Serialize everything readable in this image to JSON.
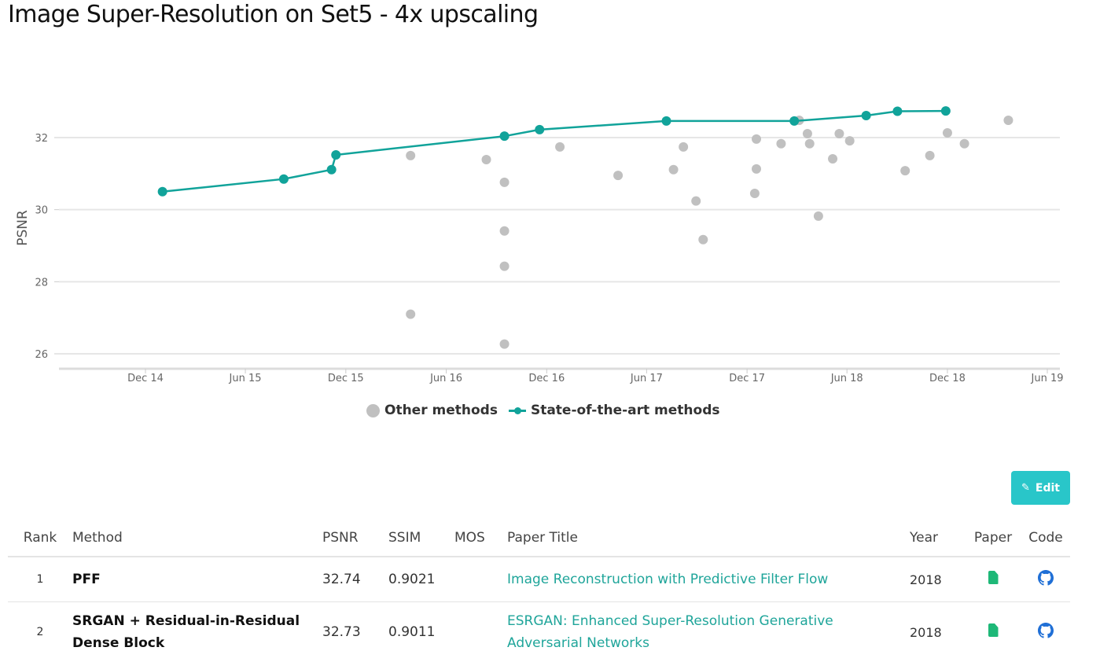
{
  "page": {
    "title": "Image Super-Resolution on Set5 - 4x upscaling",
    "edit_label": "Edit",
    "icons": {
      "edit": "pencil-icon",
      "paper": "document-icon",
      "code": "github-icon"
    },
    "colors": {
      "sota": "#11a39a",
      "other": "#c0c0c0",
      "edit_button": "#29c6c9",
      "link": "#1fa59a",
      "paper_icon": "#1eb878",
      "code_icon": "#1f6fd6"
    }
  },
  "chart_data": {
    "type": "scatter",
    "title": "",
    "xlabel": "",
    "ylabel": "PSNR",
    "ylim": [
      25.6,
      33.4
    ],
    "xlim": [
      "2014-06-25",
      "2019-06-25"
    ],
    "y_ticks": [
      26,
      28,
      30,
      32
    ],
    "x_ticks": [
      {
        "label": "Dec 14",
        "date": "2014-12-01"
      },
      {
        "label": "Jun 15",
        "date": "2015-06-01"
      },
      {
        "label": "Dec 15",
        "date": "2015-12-01"
      },
      {
        "label": "Jun 16",
        "date": "2016-06-01"
      },
      {
        "label": "Dec 16",
        "date": "2016-12-01"
      },
      {
        "label": "Jun 17",
        "date": "2017-06-01"
      },
      {
        "label": "Dec 17",
        "date": "2017-12-01"
      },
      {
        "label": "Jun 18",
        "date": "2018-06-01"
      },
      {
        "label": "Dec 18",
        "date": "2018-12-01"
      },
      {
        "label": "Jun 19",
        "date": "2019-06-01"
      }
    ],
    "grid": true,
    "legend_position": "bottom",
    "legend": [
      "Other methods",
      "State-of-the-art methods"
    ],
    "series": [
      {
        "name": "State-of-the-art methods",
        "style": "line+markers",
        "points": [
          {
            "x": "2015-01-01",
            "y": 30.5
          },
          {
            "x": "2015-08-10",
            "y": 30.85
          },
          {
            "x": "2015-11-05",
            "y": 31.11
          },
          {
            "x": "2015-11-13",
            "y": 31.52
          },
          {
            "x": "2016-09-15",
            "y": 32.04
          },
          {
            "x": "2016-11-18",
            "y": 32.22
          },
          {
            "x": "2017-07-07",
            "y": 32.46
          },
          {
            "x": "2018-02-25",
            "y": 32.46
          },
          {
            "x": "2018-07-06",
            "y": 32.61
          },
          {
            "x": "2018-09-01",
            "y": 32.73
          },
          {
            "x": "2018-11-28",
            "y": 32.74
          }
        ]
      },
      {
        "name": "Other methods",
        "style": "markers",
        "points": [
          {
            "x": "2016-03-28",
            "y": 31.5
          },
          {
            "x": "2016-03-28",
            "y": 27.1
          },
          {
            "x": "2016-08-13",
            "y": 31.39
          },
          {
            "x": "2016-09-15",
            "y": 30.76
          },
          {
            "x": "2016-09-15",
            "y": 29.41
          },
          {
            "x": "2016-09-15",
            "y": 28.43
          },
          {
            "x": "2016-09-15",
            "y": 26.27
          },
          {
            "x": "2016-12-25",
            "y": 31.74
          },
          {
            "x": "2017-04-10",
            "y": 30.95
          },
          {
            "x": "2017-07-20",
            "y": 31.11
          },
          {
            "x": "2017-08-07",
            "y": 31.74
          },
          {
            "x": "2017-08-30",
            "y": 30.24
          },
          {
            "x": "2017-09-12",
            "y": 29.17
          },
          {
            "x": "2017-12-18",
            "y": 31.96
          },
          {
            "x": "2017-12-18",
            "y": 31.13
          },
          {
            "x": "2017-12-15",
            "y": 30.45
          },
          {
            "x": "2018-02-01",
            "y": 31.83
          },
          {
            "x": "2018-03-06",
            "y": 32.48
          },
          {
            "x": "2018-03-21",
            "y": 32.11
          },
          {
            "x": "2018-03-25",
            "y": 31.83
          },
          {
            "x": "2018-04-10",
            "y": 29.82
          },
          {
            "x": "2018-05-06",
            "y": 31.41
          },
          {
            "x": "2018-05-18",
            "y": 32.11
          },
          {
            "x": "2018-06-06",
            "y": 31.91
          },
          {
            "x": "2018-09-15",
            "y": 31.08
          },
          {
            "x": "2018-10-30",
            "y": 31.5
          },
          {
            "x": "2018-12-01",
            "y": 32.13
          },
          {
            "x": "2019-01-01",
            "y": 31.83
          },
          {
            "x": "2019-03-22",
            "y": 32.48
          }
        ]
      }
    ]
  },
  "table": {
    "headers": {
      "rank": "Rank",
      "method": "Method",
      "psnr": "PSNR",
      "ssim": "SSIM",
      "mos": "MOS",
      "title": "Paper Title",
      "year": "Year",
      "paper": "Paper",
      "code": "Code"
    },
    "rows": [
      {
        "rank": "1",
        "method": "PFF",
        "psnr": "32.74",
        "ssim": "0.9021",
        "mos": "",
        "title": "Image Reconstruction with Predictive Filter Flow",
        "year": "2018"
      },
      {
        "rank": "2",
        "method": "SRGAN + Residual-in-Residual Dense Block",
        "psnr": "32.73",
        "ssim": "0.9011",
        "mos": "",
        "title": "ESRGAN: Enhanced Super-Resolution Generative Adversarial Networks",
        "year": "2018"
      }
    ]
  }
}
